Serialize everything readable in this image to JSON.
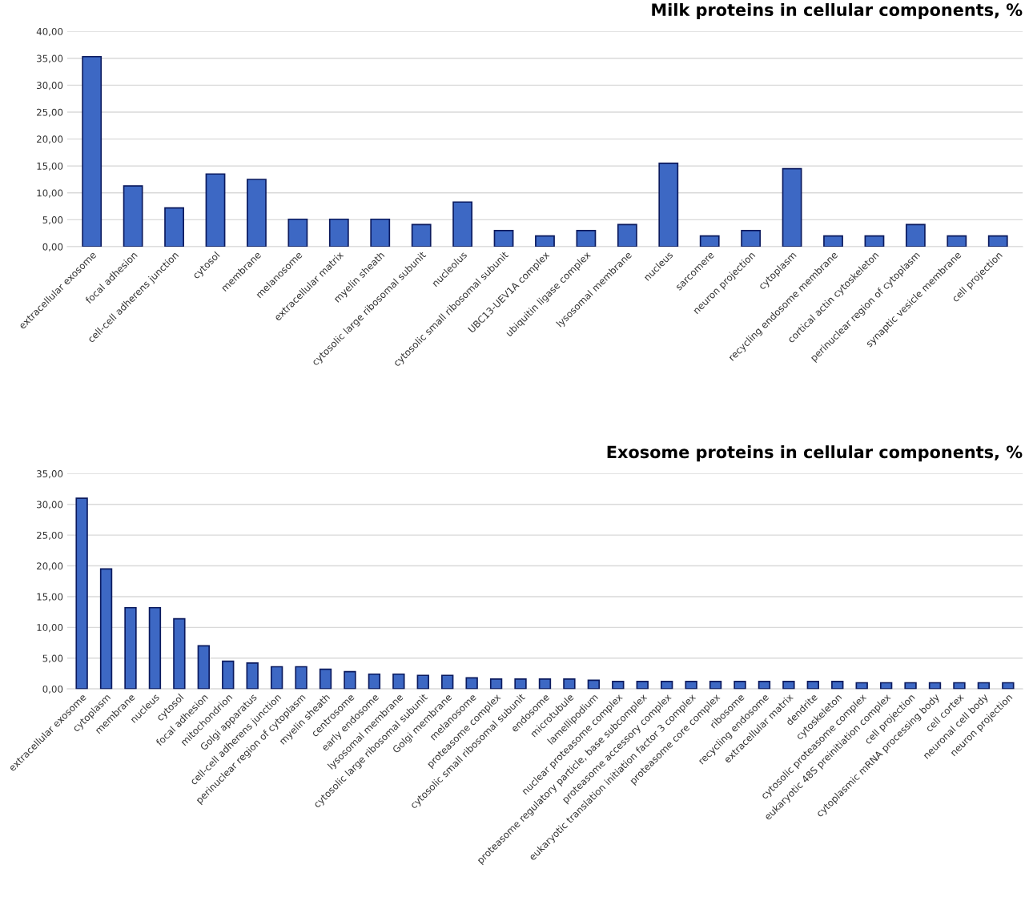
{
  "chart_data": [
    {
      "type": "bar",
      "title": "Milk proteins in cellular components, %",
      "categories": [
        "extracellular exosome",
        "focal adhesion",
        "cell-cell adherens junction",
        "cytosol",
        "membrane",
        "melanosome",
        "extracellular matrix",
        "myelin sheath",
        "cytosolic large ribosomal subunit",
        "nucleolus",
        "cytosolic small ribosomal subunit",
        "UBC13-UEV1A complex",
        "ubiquitin ligase complex",
        "lysosomal membrane",
        "nucleus",
        "sarcomere",
        "neuron projection",
        "cytoplasm",
        "recycling endosome membrane",
        "cortical actin cytoskeleton",
        "perinuclear region of cytoplasm",
        "synaptic vesicle membrane",
        "cell projection"
      ],
      "values": [
        35.3,
        11.3,
        7.2,
        13.5,
        12.5,
        5.1,
        5.1,
        5.1,
        4.1,
        8.3,
        3.0,
        2.0,
        3.0,
        4.1,
        15.5,
        2.0,
        3.0,
        14.5,
        2.0,
        2.0,
        4.1,
        2.0,
        2.0
      ],
      "color": "#3d68c4",
      "ylim": [
        0,
        40
      ],
      "yticks": [
        {
          "value": 0,
          "label": "0,00"
        },
        {
          "value": 5,
          "label": "5,00"
        },
        {
          "value": 10,
          "label": "10,00"
        },
        {
          "value": 15,
          "label": "15,00"
        },
        {
          "value": 20,
          "label": "20,00"
        },
        {
          "value": 25,
          "label": "25,00"
        },
        {
          "value": 30,
          "label": "30,00"
        },
        {
          "value": 35,
          "label": "35,00"
        },
        {
          "value": 40,
          "label": "40,00"
        }
      ],
      "grid": "y"
    },
    {
      "type": "bar",
      "title": "Exosome proteins in cellular components, %",
      "categories": [
        "extracellular exosome",
        "cytoplasm",
        "membrane",
        "nucleus",
        "cytosol",
        "focal adhesion",
        "mitochondrion",
        "Golgi apparatus",
        "cell-cell adherens junction",
        "perinuclear region of cytoplasm",
        "myelin sheath",
        "centrosome",
        "early endosome",
        "lysosomal membrane",
        "cytosolic large ribosomal subunit",
        "Golgi membrane",
        "melanosome",
        "proteasome complex",
        "cytosolic small ribosomal subunit",
        "endosome",
        "microtubule",
        "lamellipodium",
        "nuclear proteasome complex",
        "proteasome regulatory particle, base subcomplex",
        "proteasome accessory complex",
        "eukaryotic translation initiation factor 3 complex",
        "proteasome core complex",
        "ribosome",
        "recycling endosome",
        "extracellular matrix",
        "dendrite",
        "cytoskeleton",
        "cytosolic proteasome complex",
        "eukaryotic 48S preinitiation complex",
        "cell projection",
        "cytoplasmic mRNA processing body",
        "cell cortex",
        "neuronal cell body",
        "neuron projection"
      ],
      "values": [
        31.0,
        19.5,
        13.2,
        13.2,
        11.4,
        7.0,
        4.5,
        4.2,
        3.6,
        3.6,
        3.2,
        2.8,
        2.4,
        2.4,
        2.2,
        2.2,
        1.8,
        1.6,
        1.6,
        1.6,
        1.6,
        1.4,
        1.2,
        1.2,
        1.2,
        1.2,
        1.2,
        1.2,
        1.2,
        1.2,
        1.2,
        1.2,
        1.0,
        1.0,
        1.0,
        1.0,
        1.0,
        1.0,
        1.0
      ],
      "color": "#3d68c4",
      "ylim": [
        0,
        35
      ],
      "yticks": [
        {
          "value": 0,
          "label": "0,00"
        },
        {
          "value": 5,
          "label": "5,00"
        },
        {
          "value": 10,
          "label": "10,00"
        },
        {
          "value": 15,
          "label": "15,00"
        },
        {
          "value": 20,
          "label": "20,00"
        },
        {
          "value": 25,
          "label": "25,00"
        },
        {
          "value": 30,
          "label": "30,00"
        },
        {
          "value": 35,
          "label": "35,00"
        }
      ],
      "grid": "y"
    }
  ]
}
